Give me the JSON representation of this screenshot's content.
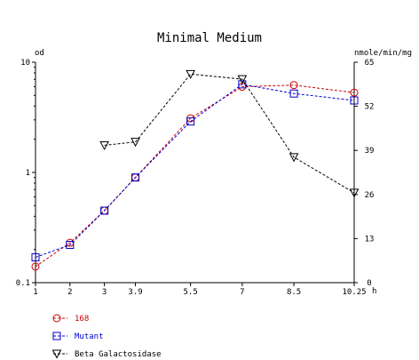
{
  "chart_data": {
    "type": "line",
    "title": "Minimal Medium",
    "ylabel_left": "od",
    "ylabel_right": "nmole/min/mg",
    "xunit": "h",
    "x": [
      1,
      2,
      3,
      3.9,
      5.5,
      7,
      8.5,
      10.25
    ],
    "x_tick_labels": [
      "1",
      "2",
      "3",
      "3.9",
      "5.5",
      "7",
      "8.5",
      "10.25"
    ],
    "y_left_scale": "log",
    "y_left_lim": [
      0.1,
      10
    ],
    "y_left_tick_labels": [
      "0.1",
      "1",
      "10"
    ],
    "y_right_lim": [
      0,
      65
    ],
    "y_right_tick_labels": [
      "0",
      "13",
      "26",
      "39",
      "52",
      "65"
    ],
    "grid": false,
    "legend_position": "bottom-left",
    "series": [
      {
        "name": "168",
        "axis": "left",
        "marker": "circle",
        "color": "#cc0000",
        "x": [
          1,
          2,
          3,
          3.9,
          5.5,
          7,
          8.5,
          10.25
        ],
        "values": [
          0.14,
          0.23,
          0.45,
          0.9,
          3.1,
          6.0,
          6.2,
          5.3
        ]
      },
      {
        "name": "Mutant",
        "axis": "left",
        "marker": "square",
        "color": "#0000cc",
        "x": [
          1,
          2,
          3,
          3.9,
          5.5,
          7,
          8.5,
          10.25
        ],
        "values": [
          0.17,
          0.22,
          0.45,
          0.9,
          2.9,
          6.3,
          5.2,
          4.5
        ]
      },
      {
        "name": "Beta Galactosidase",
        "axis": "right",
        "marker": "triangle-down",
        "color": "#000000",
        "x": [
          3,
          3.9,
          5.5,
          7,
          8.5,
          10.25
        ],
        "values": [
          40.5,
          41.5,
          61.5,
          60,
          37,
          26.5
        ]
      }
    ]
  }
}
